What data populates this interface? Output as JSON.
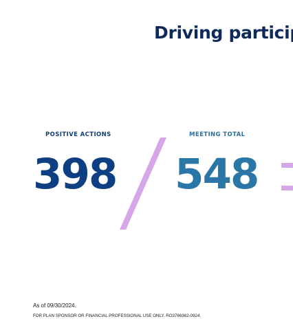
{
  "slide": {
    "title": "Driving particip",
    "metrics": {
      "positive_actions": {
        "label": "POSITIVE ACTIONS",
        "value": "398"
      },
      "meeting_total": {
        "label": "MEETING TOTAL",
        "value": "548"
      }
    },
    "footnote": {
      "date_note": "As of 09/30/2024.",
      "disclaimer": "FOR PLAN SPONSOR OR FINANCIAL PROFESSIONAL USE ONLY. RO3766362-0924."
    }
  },
  "colors": {
    "title": "#0f2a5a",
    "positive_actions": "#0d3f82",
    "meeting_total": "#2a76a6",
    "accent_lavender": "#d5a6e8",
    "background": "#ffffff"
  }
}
